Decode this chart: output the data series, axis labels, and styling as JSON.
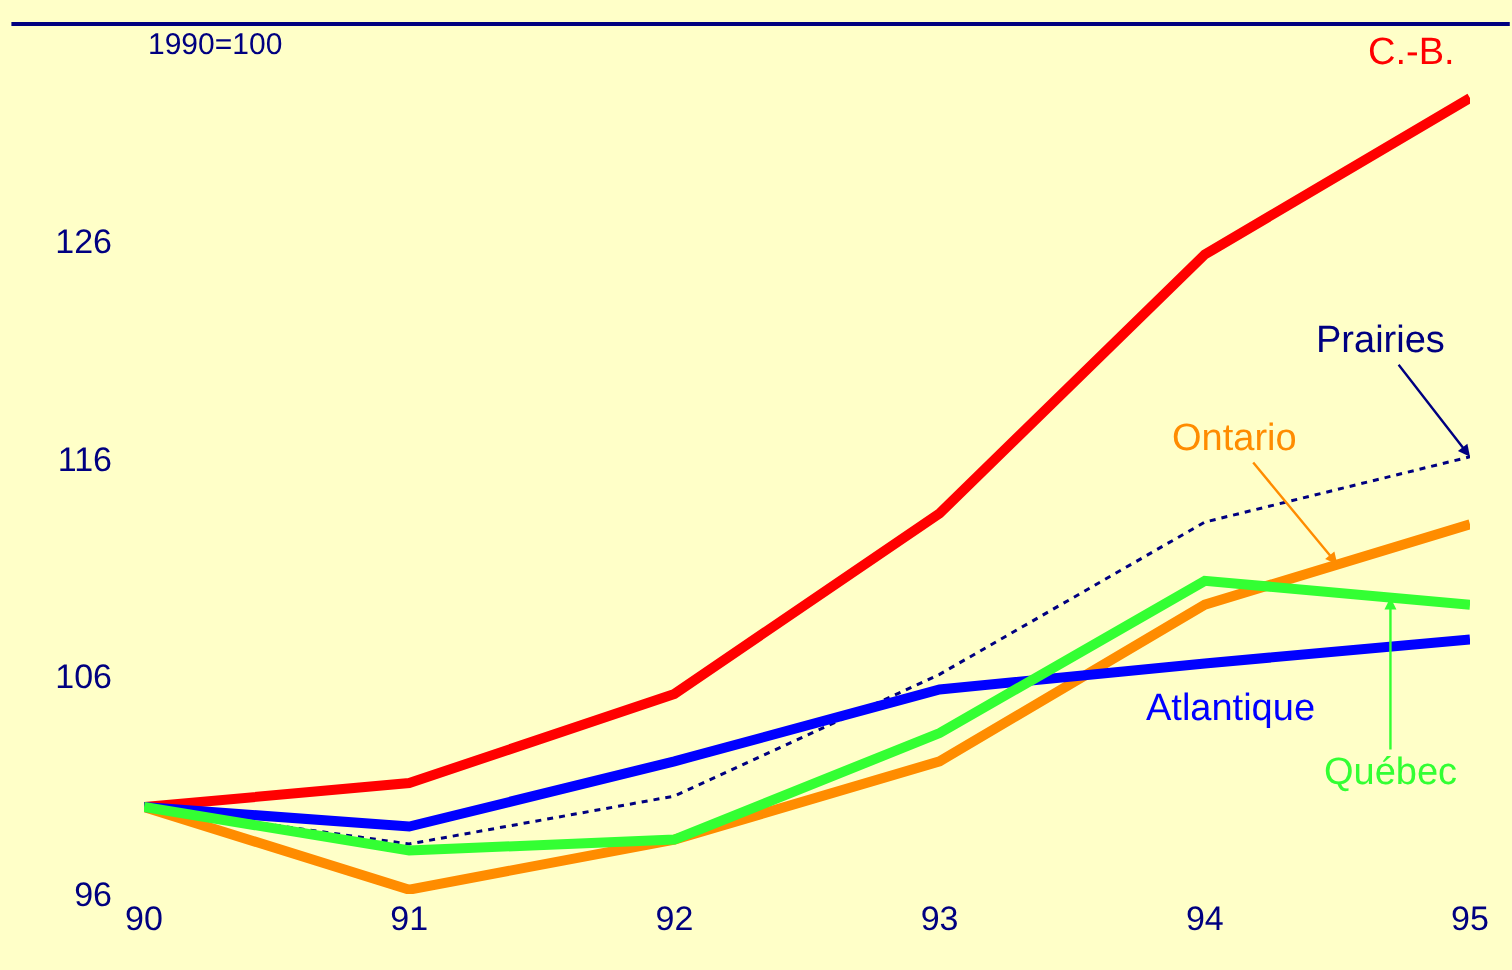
{
  "chart_data": {
    "type": "line",
    "x": [
      90,
      91,
      92,
      93,
      94,
      95
    ],
    "series": [
      {
        "name": "C.-B.",
        "color": "#ff0000",
        "values": [
          100,
          101.1,
          105.2,
          113.5,
          125.4,
          132.6
        ]
      },
      {
        "name": "Prairies",
        "color": "#000080",
        "line_style": "dotted",
        "values": [
          100,
          98.3,
          100.5,
          106.1,
          113.1,
          116.1
        ]
      },
      {
        "name": "Ontario",
        "color": "#ff8c00",
        "values": [
          100,
          96.2,
          98.5,
          102.1,
          109.3,
          113.0
        ]
      },
      {
        "name": "Atlantique",
        "color": "#0000ff",
        "values": [
          100,
          99.1,
          102.1,
          105.4,
          106.6,
          107.7
        ]
      },
      {
        "name": "Québec",
        "color": "#33ff33",
        "values": [
          100,
          98.0,
          98.5,
          103.4,
          110.4,
          109.3
        ]
      }
    ],
    "annotations": [
      "1990=100"
    ],
    "xlim": [
      90,
      95
    ],
    "xticks": [
      90,
      91,
      92,
      93,
      94,
      95
    ],
    "ylim": [
      96,
      136
    ],
    "yticks": [
      96,
      106,
      116,
      126
    ],
    "grid": false,
    "legend": false,
    "marker": "none",
    "line_style": "solid"
  }
}
